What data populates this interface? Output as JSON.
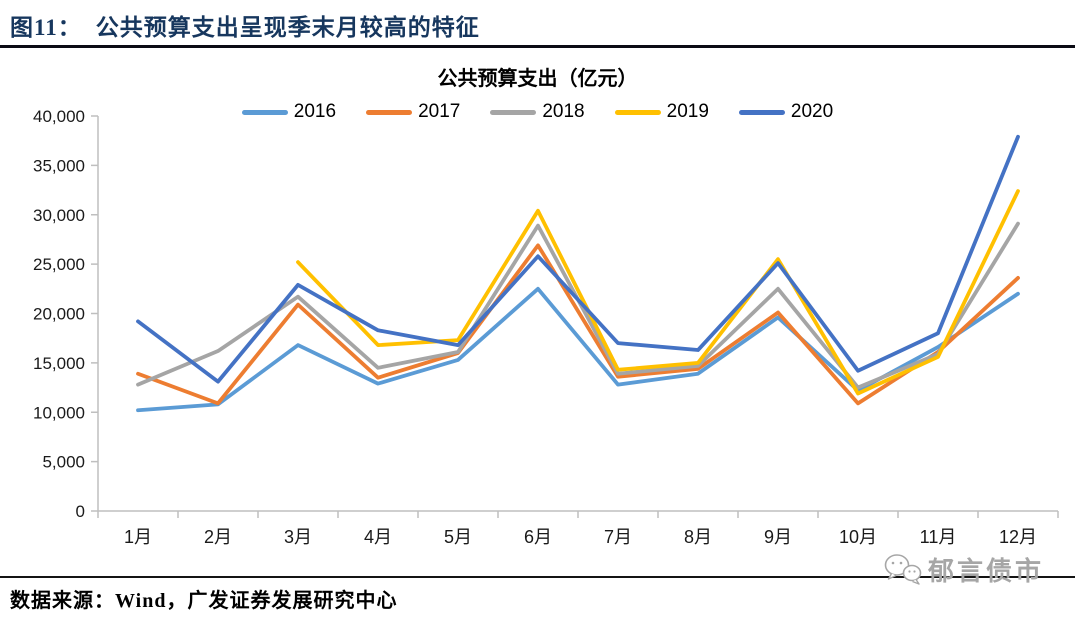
{
  "header": {
    "figure_label": "图11：",
    "title": "公共预算支出呈现季末月较高的特征"
  },
  "chart": {
    "title": "公共预算支出（亿元）"
  },
  "chart_data": {
    "type": "line",
    "title": "公共预算支出（亿元）",
    "categories": [
      "1月",
      "2月",
      "3月",
      "4月",
      "5月",
      "6月",
      "7月",
      "8月",
      "9月",
      "10月",
      "11月",
      "12月"
    ],
    "series": [
      {
        "name": "2016",
        "color": "#5B9BD5",
        "values": [
          10200,
          10800,
          16800,
          12900,
          15300,
          22500,
          12800,
          13900,
          19600,
          12200,
          16600,
          22000
        ]
      },
      {
        "name": "2017",
        "color": "#ED7D31",
        "values": [
          13900,
          10900,
          20900,
          13500,
          16000,
          26900,
          13600,
          14400,
          20100,
          10900,
          16100,
          23600
        ]
      },
      {
        "name": "2018",
        "color": "#A5A5A5",
        "values": [
          12800,
          16200,
          21700,
          14500,
          16100,
          28900,
          13900,
          14700,
          22500,
          12500,
          15900,
          29100
        ]
      },
      {
        "name": "2019",
        "color": "#FFC000",
        "values": [
          null,
          null,
          25200,
          16800,
          17300,
          30400,
          14300,
          15000,
          25500,
          11900,
          15600,
          32400
        ]
      },
      {
        "name": "2020",
        "color": "#4472C4",
        "values": [
          19200,
          13100,
          22900,
          18300,
          16800,
          25800,
          17000,
          16300,
          25100,
          14200,
          18000,
          37900
        ]
      }
    ],
    "ylim": [
      0,
      40000
    ],
    "ytick_step": 5000,
    "legend_position": "top",
    "grid": false,
    "axis_color": "#BFBFBF",
    "tick_label_color": "#1a1a1a"
  },
  "footer": {
    "source": "数据来源：Wind，广发证券发展研究中心"
  },
  "watermark": {
    "label": "郁言债市",
    "icon": "wechat-icon"
  }
}
